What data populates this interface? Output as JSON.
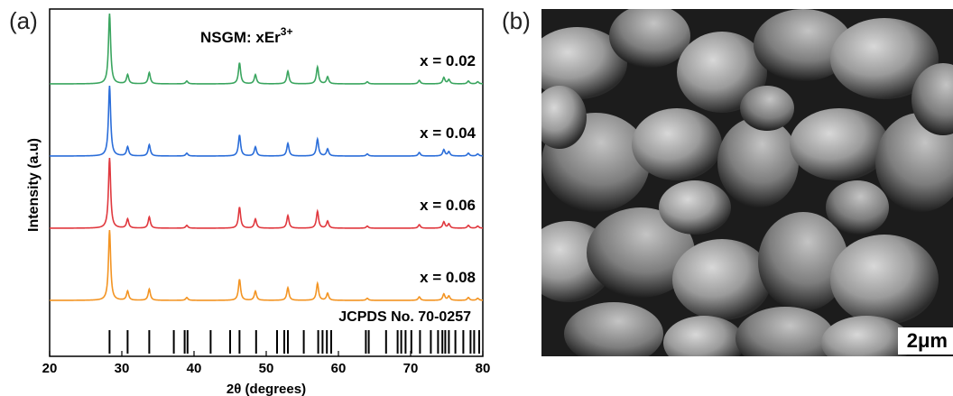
{
  "figure": {
    "panel_a_label": "(a)",
    "panel_b_label": "(b)",
    "scale_bar_label": "2μm"
  },
  "chart_data": {
    "type": "line",
    "title": "NSGM: xEr",
    "title_superscript": "3+",
    "xlabel": "2θ (degrees)",
    "ylabel": "Intensity (a.u)",
    "xlim": [
      20,
      80
    ],
    "x_ticks": [
      "20",
      "30",
      "40",
      "50",
      "60",
      "70",
      "80"
    ],
    "y_ticks": "none",
    "grid": false,
    "colors": {
      "x = 0.02": "#3aa55f",
      "x = 0.04": "#2a6dd9",
      "x = 0.06": "#e0383e",
      "x = 0.08": "#f39422",
      "reference": "#000000"
    },
    "series": [
      {
        "name": "x = 0.02",
        "label": "x = 0.02"
      },
      {
        "name": "x = 0.04",
        "label": "x = 0.04"
      },
      {
        "name": "x = 0.06",
        "label": "x = 0.06"
      },
      {
        "name": "x = 0.08",
        "label": "x = 0.08"
      }
    ],
    "peaks": {
      "positions": [
        28.3,
        30.8,
        33.8,
        39.0,
        46.3,
        48.5,
        53.0,
        57.1,
        58.5,
        64.0,
        71.2,
        74.6,
        75.3,
        78.0,
        79.3
      ],
      "intensities": [
        1.0,
        0.13,
        0.16,
        0.04,
        0.3,
        0.13,
        0.18,
        0.24,
        0.1,
        0.03,
        0.05,
        0.09,
        0.06,
        0.04,
        0.03
      ]
    },
    "reference": {
      "label": "JCPDS No. 70-0257",
      "positions": [
        28.3,
        30.8,
        33.8,
        37.2,
        38.7,
        39.1,
        42.3,
        45.0,
        46.3,
        48.6,
        51.5,
        52.5,
        53.0,
        55.2,
        57.2,
        57.8,
        58.4,
        59.0,
        63.8,
        64.2,
        66.6,
        68.2,
        68.7,
        69.3,
        70.1,
        71.3,
        72.8,
        73.8,
        74.4,
        74.8,
        75.3,
        76.2,
        77.3,
        78.3,
        78.8,
        79.5
      ]
    }
  }
}
